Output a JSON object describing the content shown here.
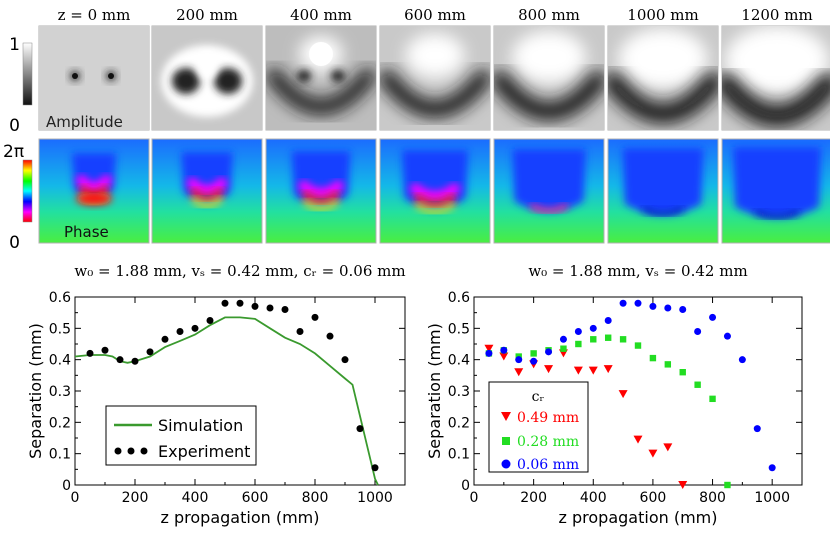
{
  "figure": {
    "z_labels": [
      "z = 0 mm",
      "200 mm",
      "400 mm",
      "600 mm",
      "800 mm",
      "1000 mm",
      "1200 mm"
    ],
    "amplitude": {
      "label": "Amplitude",
      "colorbar_max": "1",
      "colorbar_min": "0"
    },
    "phase": {
      "label": "Phase",
      "colorbar_max": "2π",
      "colorbar_min": "0"
    }
  },
  "chart_data": [
    {
      "type": "scatter",
      "title": "w₀ = 1.88 mm, vₛ = 0.42 mm, cᵣ = 0.06 mm",
      "xlabel": "z propagation (mm)",
      "ylabel": "Separation (mm)",
      "xlim": [
        0,
        1100
      ],
      "ylim": [
        0,
        0.6
      ],
      "xticks": [
        0,
        200,
        400,
        600,
        800,
        1000
      ],
      "yticks": [
        0,
        0.1,
        0.2,
        0.3,
        0.4,
        0.5,
        0.6
      ],
      "legend": {
        "position": "bottom-left",
        "entries": [
          "Simulation",
          "Experiment"
        ]
      },
      "series": [
        {
          "name": "Simulation",
          "kind": "line",
          "color": "#3a9a2e",
          "x": [
            0,
            50,
            100,
            125,
            150,
            175,
            200,
            250,
            300,
            350,
            400,
            450,
            500,
            550,
            600,
            650,
            700,
            750,
            800,
            850,
            900,
            925,
            950,
            975,
            1000,
            1010
          ],
          "y": [
            0.41,
            0.415,
            0.415,
            0.41,
            0.395,
            0.39,
            0.395,
            0.41,
            0.44,
            0.46,
            0.48,
            0.51,
            0.535,
            0.535,
            0.53,
            0.5,
            0.47,
            0.45,
            0.42,
            0.38,
            0.34,
            0.32,
            0.22,
            0.12,
            0.02,
            0.0
          ]
        },
        {
          "name": "Experiment",
          "kind": "scatter",
          "color": "#000000",
          "x": [
            50,
            100,
            150,
            200,
            250,
            300,
            350,
            400,
            450,
            500,
            550,
            600,
            650,
            700,
            750,
            800,
            850,
            900,
            950,
            1000
          ],
          "y": [
            0.42,
            0.43,
            0.4,
            0.395,
            0.425,
            0.465,
            0.49,
            0.5,
            0.525,
            0.58,
            0.58,
            0.57,
            0.565,
            0.56,
            0.49,
            0.535,
            0.475,
            0.4,
            0.18,
            0.055
          ]
        }
      ]
    },
    {
      "type": "scatter",
      "title": "w₀ = 1.88 mm, vₛ = 0.42 mm",
      "xlabel": "z propagation (mm)",
      "ylabel": "Separation (mm)",
      "xlim": [
        0,
        1100
      ],
      "ylim": [
        0,
        0.6
      ],
      "xticks": [
        0,
        200,
        400,
        600,
        800,
        1000
      ],
      "yticks": [
        0,
        0.1,
        0.2,
        0.3,
        0.4,
        0.5,
        0.6
      ],
      "legend": {
        "position": "bottom-left",
        "title": "cᵣ",
        "entries": [
          "0.49 mm",
          "0.28 mm",
          "0.06 mm"
        ]
      },
      "series": [
        {
          "name": "0.49 mm",
          "marker": "triangle-down",
          "color": "#ff0000",
          "x": [
            50,
            100,
            150,
            200,
            250,
            300,
            350,
            400,
            450,
            500,
            550,
            600,
            650,
            700
          ],
          "y": [
            0.435,
            0.41,
            0.36,
            0.385,
            0.37,
            0.42,
            0.365,
            0.365,
            0.37,
            0.29,
            0.145,
            0.1,
            0.12,
            0.0
          ]
        },
        {
          "name": "0.28 mm",
          "marker": "square",
          "color": "#22dd22",
          "x": [
            50,
            100,
            150,
            200,
            250,
            300,
            350,
            400,
            450,
            500,
            550,
            600,
            650,
            700,
            750,
            800,
            850
          ],
          "y": [
            0.42,
            0.43,
            0.41,
            0.42,
            0.43,
            0.435,
            0.45,
            0.465,
            0.47,
            0.465,
            0.445,
            0.405,
            0.385,
            0.36,
            0.32,
            0.275,
            0.0
          ]
        },
        {
          "name": "0.06 mm",
          "marker": "circle",
          "color": "#0000ff",
          "x": [
            50,
            100,
            150,
            200,
            250,
            300,
            350,
            400,
            450,
            500,
            550,
            600,
            650,
            700,
            750,
            800,
            850,
            900,
            950,
            1000
          ],
          "y": [
            0.42,
            0.43,
            0.4,
            0.395,
            0.425,
            0.465,
            0.49,
            0.5,
            0.525,
            0.58,
            0.58,
            0.57,
            0.565,
            0.56,
            0.49,
            0.535,
            0.475,
            0.4,
            0.18,
            0.055
          ]
        }
      ]
    }
  ]
}
